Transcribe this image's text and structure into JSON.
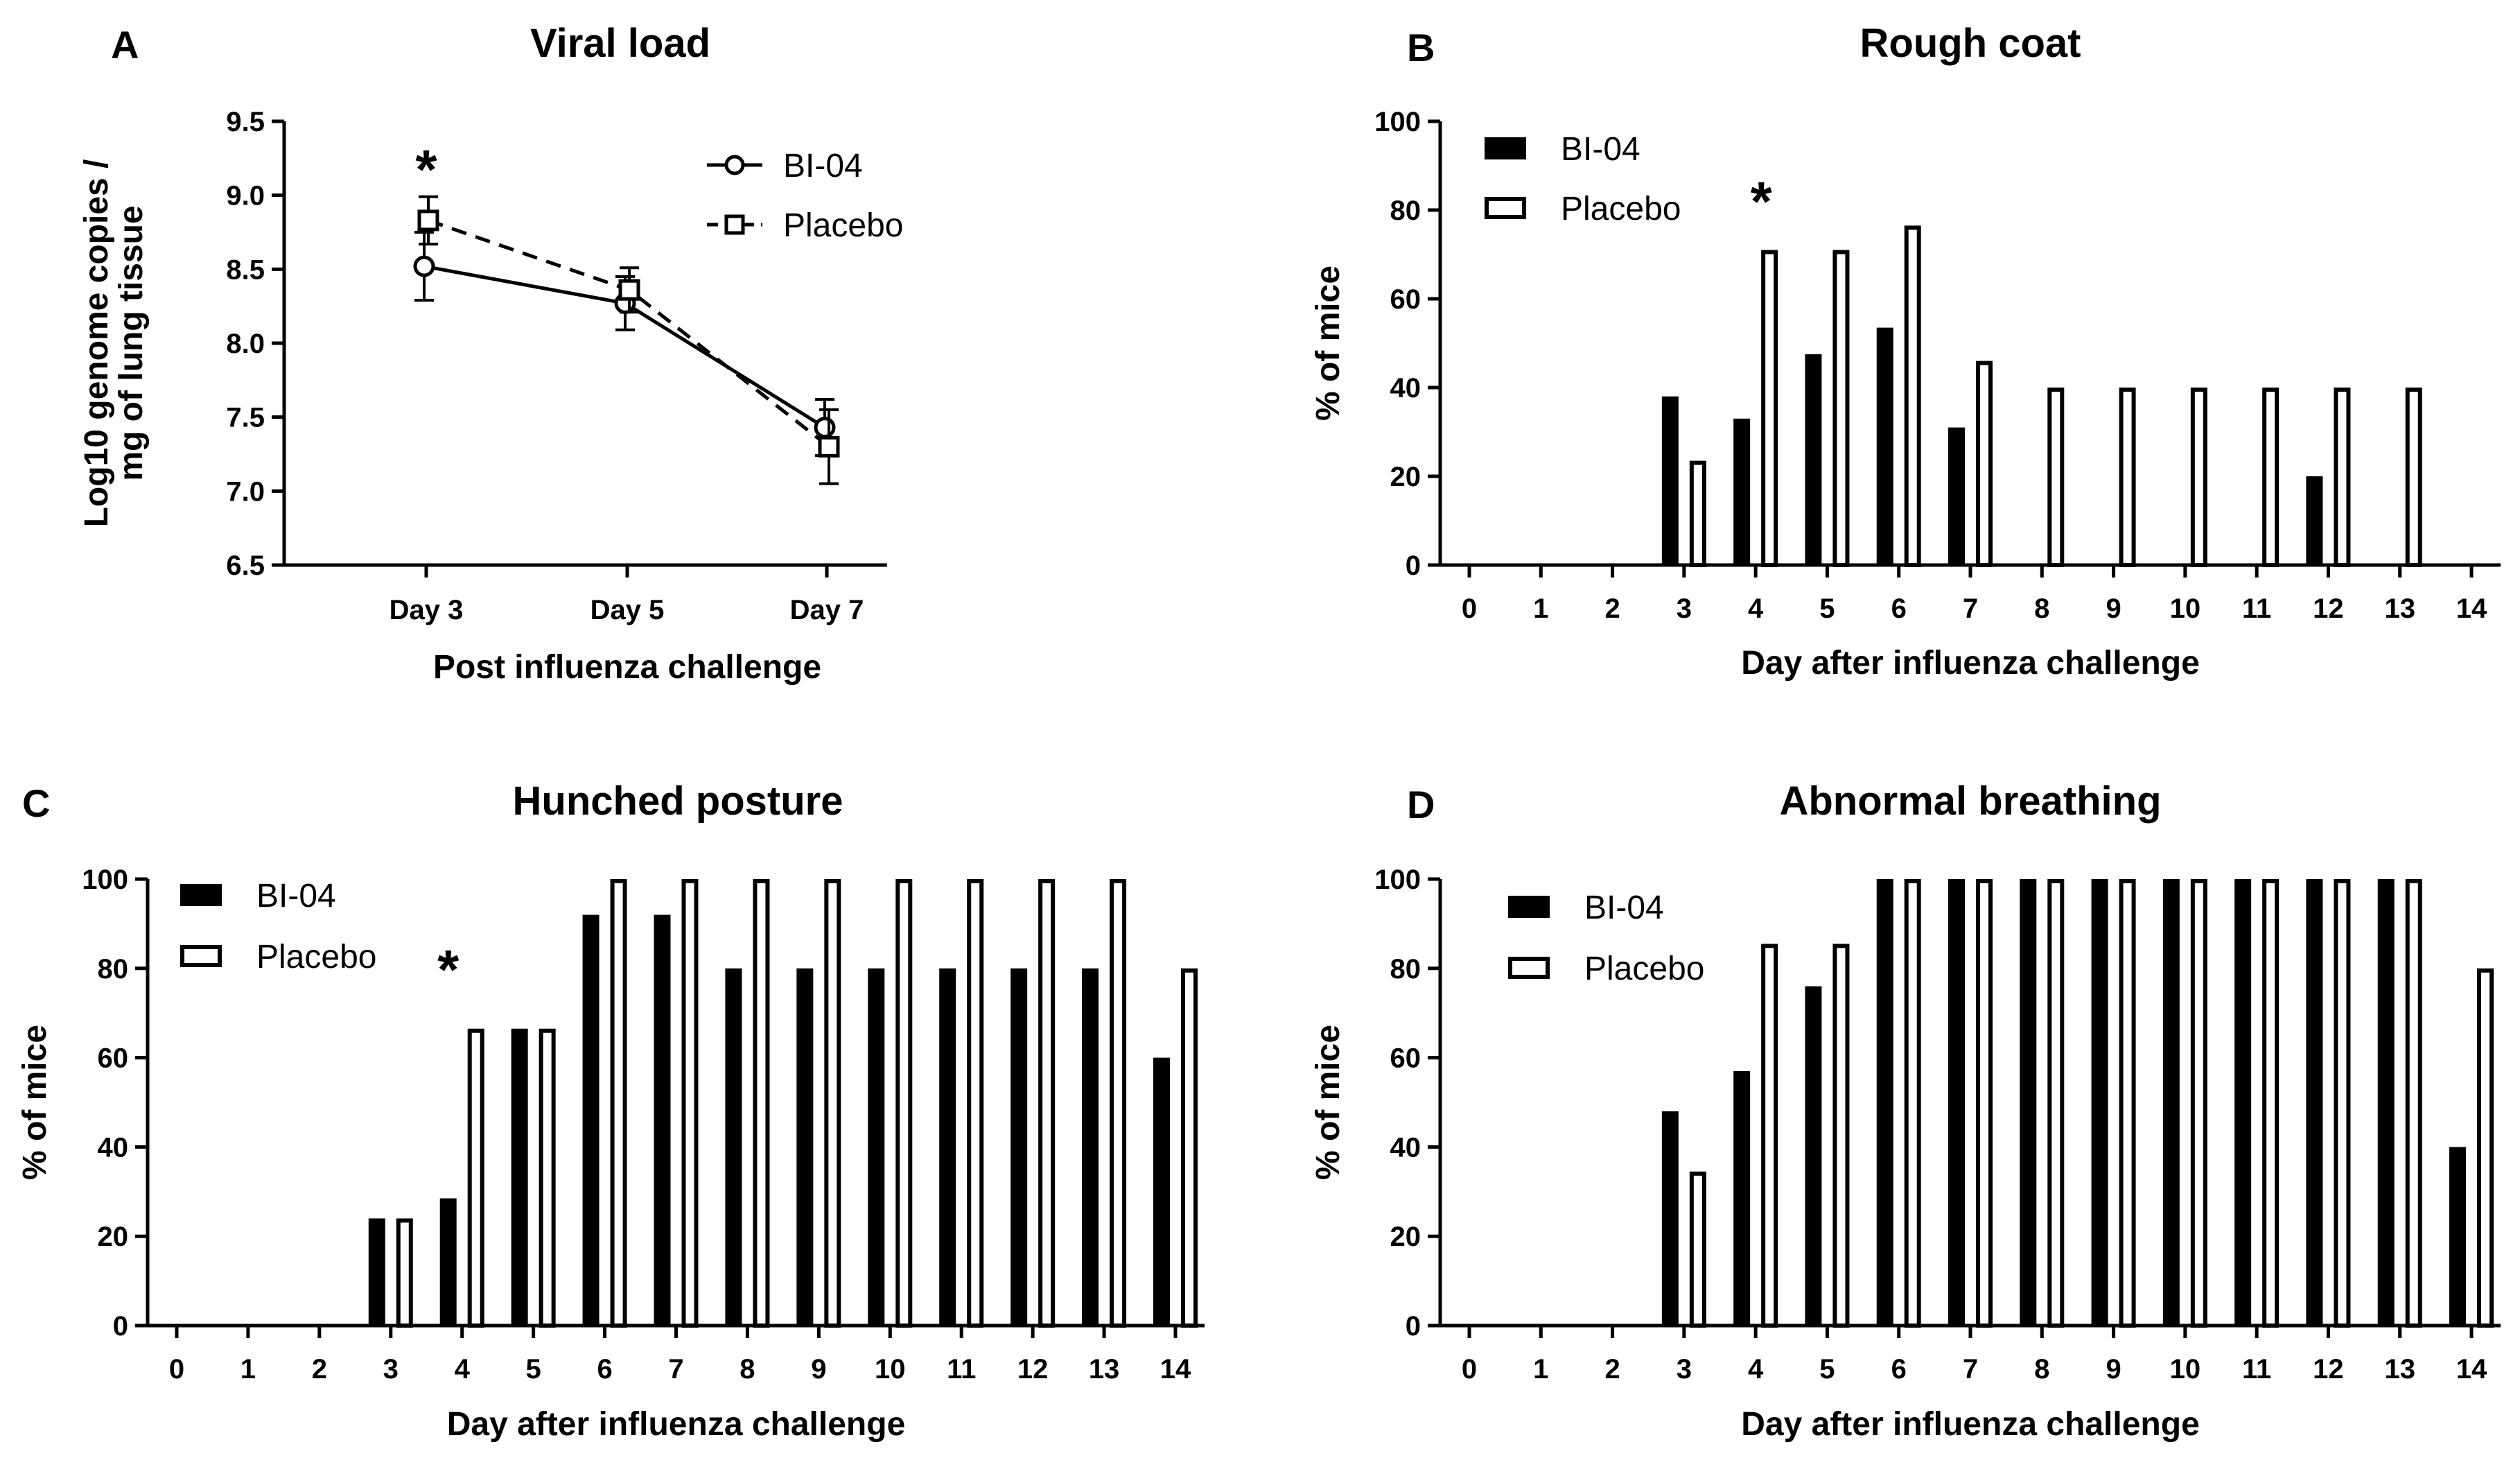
{
  "chart_data": [
    {
      "id": "A",
      "type": "line",
      "panel_label": "A",
      "title": "Viral load",
      "xlabel": "Post influenza challenge",
      "ylabel_lines": [
        "Log10 genome copies /",
        "mg of  lung tissue"
      ],
      "categories": [
        "Day 3",
        "Day 5",
        "Day 7"
      ],
      "ylim": [
        6.5,
        9.5
      ],
      "yticks": [
        "6.5",
        "7.0",
        "7.5",
        "8.0",
        "8.5",
        "9.0",
        "9.5"
      ],
      "series": [
        {
          "name": "BI-04",
          "marker": "circle",
          "dash": "solid",
          "values": [
            8.52,
            8.27,
            7.43
          ],
          "errors": [
            0.23,
            0.18,
            0.19
          ]
        },
        {
          "name": "Placebo",
          "marker": "square",
          "dash": "dashed",
          "values": [
            8.83,
            8.36,
            7.3
          ],
          "errors": [
            0.16,
            0.15,
            0.25
          ]
        }
      ],
      "significance": [
        {
          "category": "Day 3",
          "label": "*"
        }
      ],
      "legend": "top-right"
    },
    {
      "id": "B",
      "type": "bar",
      "panel_label": "B",
      "title": "Rough coat",
      "xlabel": "Day after influenza challenge",
      "ylabel": "% of mice",
      "categories": [
        "0",
        "1",
        "2",
        "3",
        "4",
        "5",
        "6",
        "7",
        "8",
        "9",
        "10",
        "11",
        "12",
        "13",
        "14"
      ],
      "ylim": [
        0,
        100
      ],
      "yticks": [
        "0",
        "20",
        "40",
        "60",
        "80",
        "100"
      ],
      "series": [
        {
          "name": "BI-04",
          "fill": "solid",
          "values": [
            0,
            0,
            0,
            38,
            33,
            47.5,
            53.5,
            31,
            0,
            0,
            0,
            0,
            20,
            0,
            0
          ]
        },
        {
          "name": "Placebo",
          "fill": "open",
          "values": [
            0,
            0,
            0,
            23.5,
            71,
            71,
            76.5,
            46,
            40,
            40,
            40,
            40,
            40,
            40,
            0
          ]
        }
      ],
      "significance": [
        {
          "category": "4",
          "label": "*"
        }
      ],
      "legend": "top-left"
    },
    {
      "id": "C",
      "type": "bar",
      "panel_label": "C",
      "title": "Hunched posture",
      "xlabel": "Day after influenza challenge",
      "ylabel": "% of mice",
      "categories": [
        "0",
        "1",
        "2",
        "3",
        "4",
        "5",
        "6",
        "7",
        "8",
        "9",
        "10",
        "11",
        "12",
        "13",
        "14"
      ],
      "ylim": [
        0,
        100
      ],
      "yticks": [
        "0",
        "20",
        "40",
        "60",
        "80",
        "100"
      ],
      "series": [
        {
          "name": "BI-04",
          "fill": "solid",
          "values": [
            0,
            0,
            0,
            24,
            28.5,
            66.5,
            92,
            92,
            80,
            80,
            80,
            80,
            80,
            80,
            60
          ]
        },
        {
          "name": "Placebo",
          "fill": "open",
          "values": [
            0,
            0,
            0,
            24,
            66.5,
            66.5,
            100,
            100,
            100,
            100,
            100,
            100,
            100,
            100,
            80
          ]
        }
      ],
      "significance": [
        {
          "category": "4",
          "label": "*"
        }
      ],
      "legend": "top-left"
    },
    {
      "id": "D",
      "type": "bar",
      "panel_label": "D",
      "title": "Abnormal breathing",
      "xlabel": "Day after influenza challenge",
      "ylabel": "% of mice",
      "categories": [
        "0",
        "1",
        "2",
        "3",
        "4",
        "5",
        "6",
        "7",
        "8",
        "9",
        "10",
        "11",
        "12",
        "13",
        "14"
      ],
      "ylim": [
        0,
        100
      ],
      "yticks": [
        "0",
        "20",
        "40",
        "60",
        "80",
        "100"
      ],
      "series": [
        {
          "name": "BI-04",
          "fill": "solid",
          "values": [
            0,
            0,
            0,
            48,
            57,
            76,
            100,
            100,
            100,
            100,
            100,
            100,
            100,
            100,
            40
          ]
        },
        {
          "name": "Placebo",
          "fill": "open",
          "values": [
            0,
            0,
            0,
            34.5,
            85.5,
            85.5,
            100,
            100,
            100,
            100,
            100,
            100,
            100,
            100,
            80
          ]
        }
      ],
      "significance": [],
      "legend": "top-left"
    }
  ]
}
